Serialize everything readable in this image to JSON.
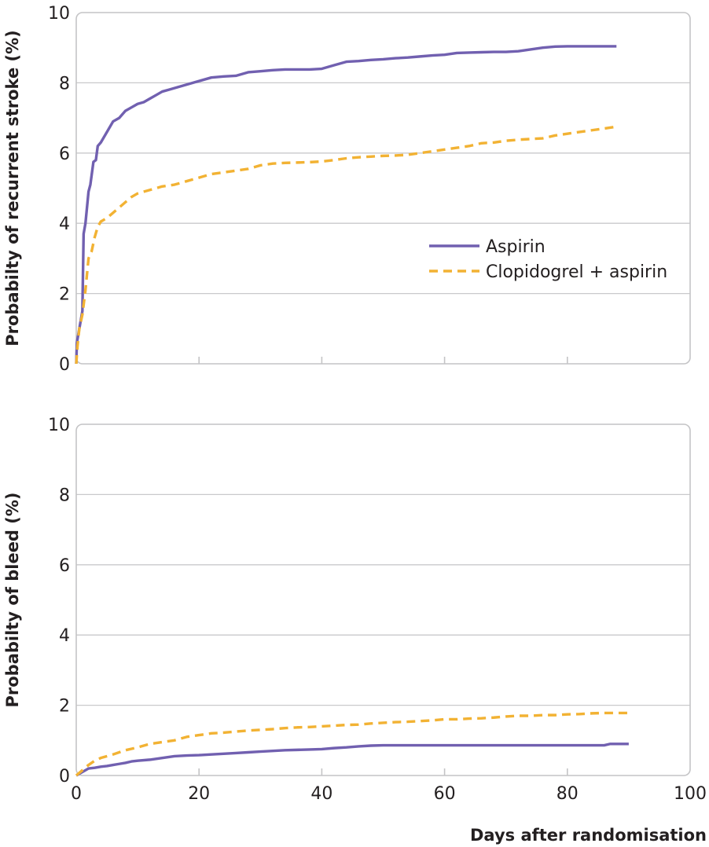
{
  "colors": {
    "aspirin": "#7160b0",
    "clopidogrel_aspirin": "#f2b233"
  },
  "chart_data": [
    {
      "type": "line",
      "ylabel": "Probabilty of recurrent stroke (%)",
      "xlabel": "",
      "xlim": [
        0,
        100
      ],
      "ylim": [
        0,
        10
      ],
      "yticks": [
        "0",
        "2",
        "4",
        "6",
        "8",
        "10"
      ],
      "xticks": [],
      "grid": true,
      "legend": {
        "placement": "center-right",
        "entries": [
          "Aspirin",
          "Clopidogrel + aspirin"
        ]
      },
      "series": [
        {
          "name": "Aspirin",
          "style": "solid",
          "x": [
            0,
            0.1,
            0.5,
            1.0,
            1.2,
            1.5,
            2.0,
            2.3,
            2.8,
            3.2,
            3.5,
            4.0,
            5.0,
            6.0,
            7.0,
            8.0,
            9.0,
            10.0,
            11.0,
            12.0,
            13.0,
            14.0,
            15.0,
            16.0,
            17.0,
            18.0,
            19.0,
            20.0,
            22.0,
            24.0,
            26.0,
            28.0,
            30.0,
            32.0,
            34.0,
            36.0,
            38.0,
            40.0,
            42.0,
            44.0,
            46.0,
            48.0,
            50.0,
            52.0,
            54.0,
            56.0,
            58.0,
            60.0,
            62.0,
            64.0,
            66.0,
            68.0,
            70.0,
            72.0,
            74.0,
            76.0,
            78.0,
            80.0,
            85.0,
            88.0
          ],
          "y": [
            0,
            0.6,
            1.0,
            1.5,
            3.7,
            4.0,
            4.9,
            5.1,
            5.75,
            5.8,
            6.2,
            6.3,
            6.6,
            6.9,
            7.0,
            7.2,
            7.3,
            7.4,
            7.45,
            7.55,
            7.65,
            7.75,
            7.8,
            7.85,
            7.9,
            7.95,
            8.0,
            8.05,
            8.15,
            8.18,
            8.2,
            8.3,
            8.33,
            8.36,
            8.38,
            8.38,
            8.38,
            8.4,
            8.5,
            8.6,
            8.62,
            8.65,
            8.67,
            8.7,
            8.72,
            8.75,
            8.78,
            8.8,
            8.85,
            8.86,
            8.87,
            8.88,
            8.88,
            8.9,
            8.95,
            9.0,
            9.03,
            9.04,
            9.04,
            9.04
          ]
        },
        {
          "name": "Clopidogrel + aspirin",
          "style": "dashed",
          "x": [
            0,
            0.2,
            0.5,
            1.0,
            1.5,
            2.0,
            2.5,
            3.0,
            3.5,
            4.0,
            5.0,
            6.0,
            7.0,
            8.0,
            9.0,
            10.0,
            12.0,
            14.0,
            16.0,
            18.0,
            20.0,
            22.0,
            24.0,
            26.0,
            28.0,
            30.0,
            32.0,
            34.0,
            36.0,
            38.0,
            40.0,
            42.0,
            44.0,
            46.0,
            48.0,
            50.0,
            52.0,
            54.0,
            56.0,
            58.0,
            60.0,
            62.0,
            64.0,
            66.0,
            68.0,
            70.0,
            72.0,
            74.0,
            76.0,
            78.0,
            80.0,
            82.0,
            84.0,
            86.0,
            88.0
          ],
          "y": [
            0,
            0.5,
            1.0,
            1.4,
            2.1,
            3.0,
            3.2,
            3.6,
            3.9,
            4.05,
            4.15,
            4.3,
            4.45,
            4.6,
            4.75,
            4.85,
            4.95,
            5.05,
            5.1,
            5.2,
            5.3,
            5.4,
            5.45,
            5.5,
            5.55,
            5.65,
            5.7,
            5.72,
            5.73,
            5.74,
            5.76,
            5.8,
            5.85,
            5.88,
            5.9,
            5.92,
            5.93,
            5.95,
            6.0,
            6.05,
            6.1,
            6.15,
            6.2,
            6.28,
            6.3,
            6.35,
            6.38,
            6.4,
            6.42,
            6.5,
            6.55,
            6.6,
            6.65,
            6.7,
            6.75
          ]
        }
      ]
    },
    {
      "type": "line",
      "ylabel": "Probabilty of bleed (%)",
      "xlabel": "Days after randomisation",
      "xlim": [
        0,
        100
      ],
      "ylim": [
        0,
        10
      ],
      "yticks": [
        "0",
        "2",
        "4",
        "6",
        "8",
        "10"
      ],
      "xticks": [
        "0",
        "20",
        "40",
        "60",
        "80",
        "100"
      ],
      "grid": true,
      "series": [
        {
          "name": "Aspirin",
          "style": "solid",
          "x": [
            0,
            0.5,
            1.0,
            1.5,
            2.0,
            3.0,
            4.0,
            5.0,
            6.0,
            7.0,
            8.0,
            9.0,
            10.0,
            12.0,
            14.0,
            16.0,
            18.0,
            20.0,
            22.0,
            24.0,
            26.0,
            28.0,
            30.0,
            32.0,
            34.0,
            36.0,
            38.0,
            40.0,
            42.0,
            44.0,
            46.0,
            48.0,
            50.0,
            60.0,
            70.0,
            80.0,
            86.0,
            87.0,
            90.0
          ],
          "y": [
            0,
            0.05,
            0.1,
            0.15,
            0.2,
            0.22,
            0.25,
            0.27,
            0.3,
            0.33,
            0.36,
            0.4,
            0.42,
            0.45,
            0.5,
            0.55,
            0.57,
            0.58,
            0.6,
            0.62,
            0.64,
            0.66,
            0.68,
            0.7,
            0.72,
            0.73,
            0.74,
            0.75,
            0.78,
            0.8,
            0.83,
            0.85,
            0.86,
            0.86,
            0.86,
            0.86,
            0.86,
            0.9,
            0.9
          ]
        },
        {
          "name": "Clopidogrel + aspirin",
          "style": "dashed",
          "x": [
            0,
            1.0,
            2.0,
            3.0,
            4.0,
            6.0,
            8.0,
            10.0,
            12.0,
            14.0,
            16.0,
            18.0,
            20.0,
            22.0,
            24.0,
            26.0,
            28.0,
            30.0,
            32.0,
            34.0,
            36.0,
            38.0,
            40.0,
            42.0,
            44.0,
            46.0,
            48.0,
            50.0,
            52.0,
            54.0,
            56.0,
            58.0,
            60.0,
            62.0,
            64.0,
            66.0,
            68.0,
            70.0,
            72.0,
            74.0,
            76.0,
            78.0,
            80.0,
            82.0,
            84.0,
            86.0,
            88.0,
            90.0
          ],
          "y": [
            0,
            0.15,
            0.3,
            0.42,
            0.5,
            0.6,
            0.72,
            0.8,
            0.9,
            0.95,
            1.0,
            1.1,
            1.15,
            1.2,
            1.22,
            1.25,
            1.28,
            1.3,
            1.32,
            1.35,
            1.37,
            1.38,
            1.4,
            1.42,
            1.44,
            1.45,
            1.48,
            1.5,
            1.52,
            1.53,
            1.55,
            1.57,
            1.6,
            1.6,
            1.62,
            1.63,
            1.65,
            1.68,
            1.7,
            1.7,
            1.72,
            1.72,
            1.74,
            1.75,
            1.77,
            1.78,
            1.78,
            1.78
          ]
        }
      ]
    }
  ]
}
